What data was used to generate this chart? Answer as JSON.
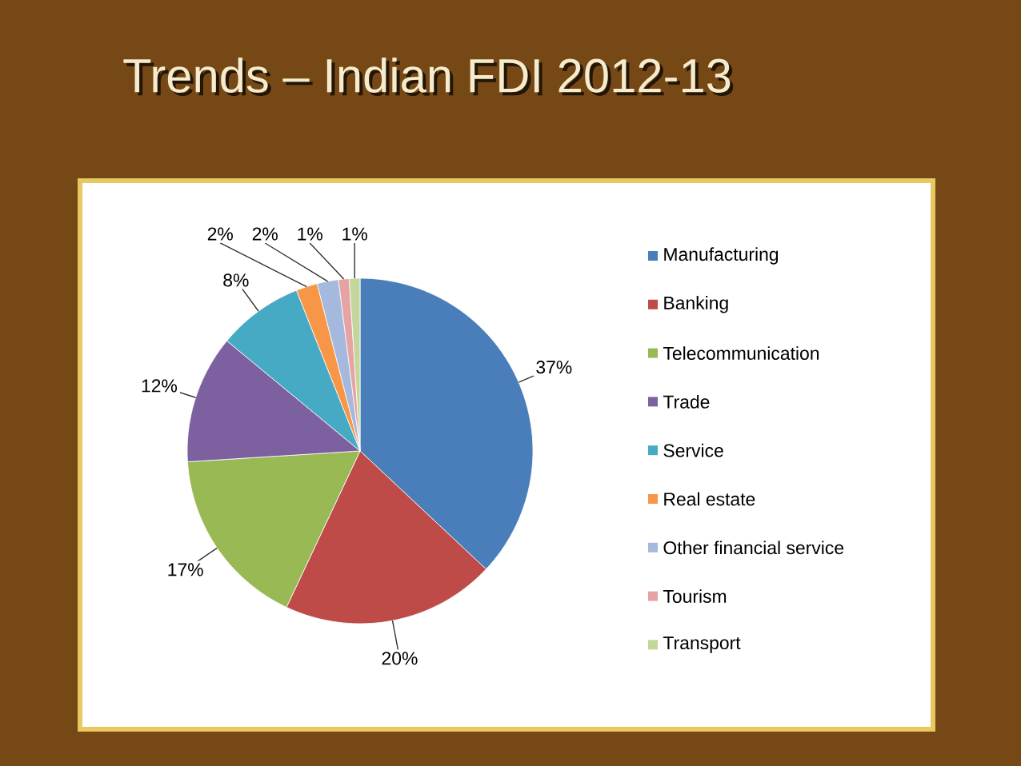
{
  "chart_data": {
    "type": "pie",
    "title": "Trends – Indian FDI 2012-13",
    "categories": [
      "Manufacturing",
      "Banking",
      "Telecommunication",
      "Trade",
      "Service",
      "Real estate",
      "Other financial service",
      "Tourism",
      "Transport"
    ],
    "values": [
      37,
      20,
      17,
      12,
      8,
      2,
      2,
      1,
      1
    ],
    "colors": [
      "#4a7ebb",
      "#be4b48",
      "#98b954",
      "#7d60a0",
      "#46aac5",
      "#f79646",
      "#a5b8dd",
      "#e6a3a3",
      "#c3d69b"
    ],
    "value_labels": [
      "37%",
      "20%",
      "17%",
      "12%",
      "8%",
      "2%",
      "2%",
      "1%",
      "1%"
    ],
    "legend": "right"
  }
}
